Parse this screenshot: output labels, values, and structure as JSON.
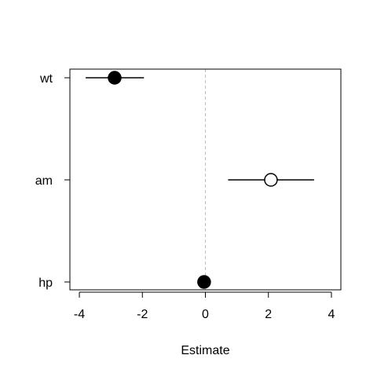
{
  "chart_data": {
    "type": "scatter",
    "subtype": "coefficient-plot",
    "title": "",
    "xlabel": "Estimate",
    "ylabel": "",
    "xlim": [
      -4.3,
      4.3
    ],
    "x_ticks": [
      "-4",
      "-2",
      "0",
      "2",
      "4"
    ],
    "x_tick_values": [
      -4,
      -2,
      0,
      2,
      4
    ],
    "reference_line": {
      "x": 0,
      "style": "dashed",
      "color": "#bebebe"
    },
    "grid": false,
    "legend": "none",
    "categories": [
      "wt",
      "am",
      "hp"
    ],
    "points": [
      {
        "label": "wt",
        "estimate": -2.88,
        "lower": -3.8,
        "upper": -1.95,
        "marker": "filled"
      },
      {
        "label": "am",
        "estimate": 2.08,
        "lower": 0.72,
        "upper": 3.45,
        "marker": "open"
      },
      {
        "label": "hp",
        "estimate": -0.04,
        "lower": -0.06,
        "upper": -0.02,
        "marker": "filled"
      }
    ],
    "colors": {
      "line": "#000000",
      "filled_marker": "#000000",
      "open_marker_fill": "#ffffff",
      "reference": "#bebebe"
    }
  }
}
